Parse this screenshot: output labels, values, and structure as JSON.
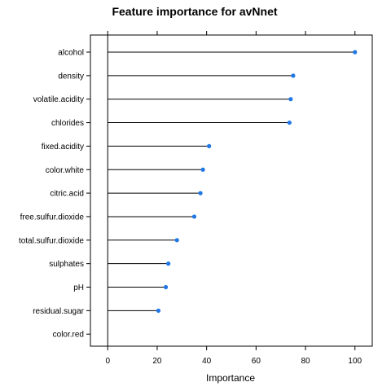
{
  "chart_data": {
    "type": "dotplot",
    "title": "Feature importance for avNnet",
    "xlabel": "Importance",
    "ylabel": "",
    "xlim": [
      -7,
      107
    ],
    "xticks": [
      0,
      20,
      40,
      60,
      80,
      100
    ],
    "grid": false,
    "point_color": "#1f78e6",
    "categories": [
      "alcohol",
      "density",
      "volatile.acidity",
      "chlorides",
      "fixed.acidity",
      "color.white",
      "citric.acid",
      "free.sulfur.dioxide",
      "total.sulfur.dioxide",
      "sulphates",
      "pH",
      "residual.sugar",
      "color.red"
    ],
    "values": [
      100,
      75,
      74,
      73.5,
      41,
      38.5,
      37.5,
      35,
      28,
      24.5,
      23.5,
      20.5,
      0
    ]
  }
}
